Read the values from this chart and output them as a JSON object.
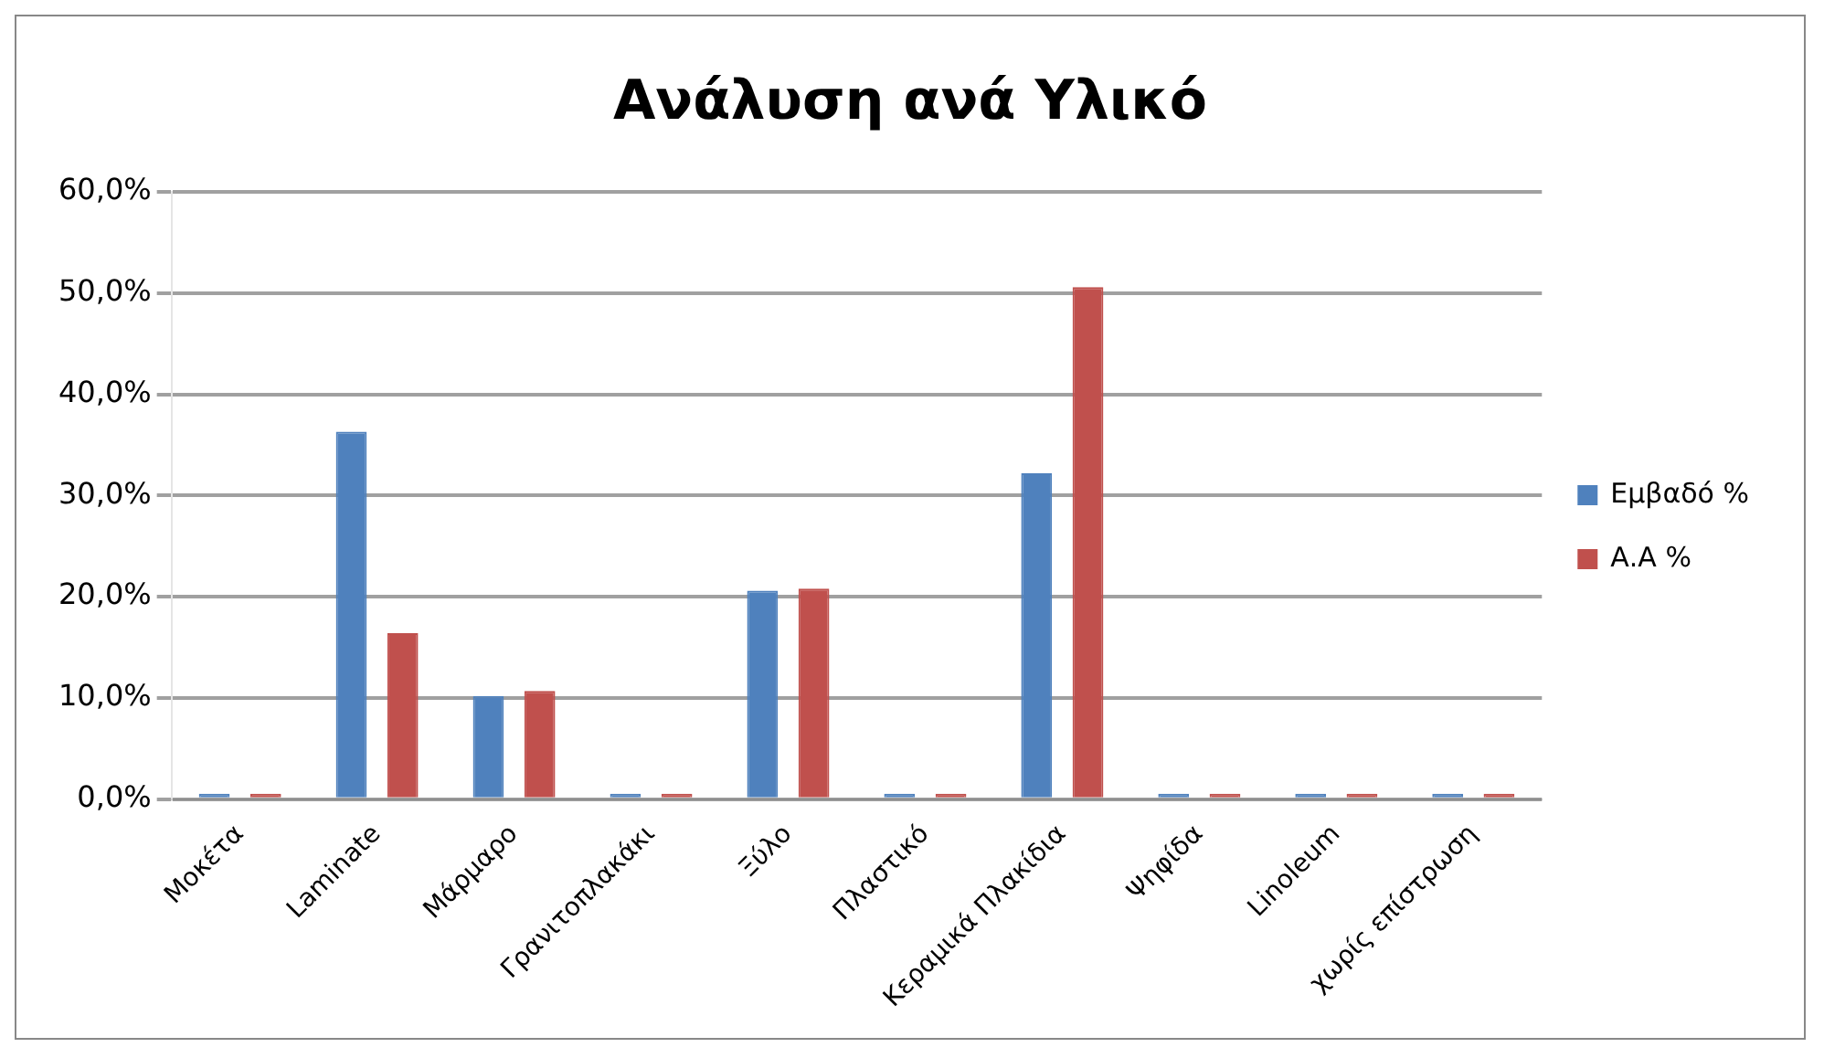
{
  "chart_data": {
    "type": "bar",
    "title": "Ανάλυση ανά Υλικό",
    "categories": [
      "Μοκέτα",
      "Laminate",
      "Μάρμαρο",
      "Γρανιτοπλακάκι",
      "Ξύλο",
      "Πλαστικό",
      "Κεραμικά Πλακίδια",
      "Ψηφίδα",
      "Linoleum",
      "χωρίς επίστρωση"
    ],
    "series": [
      {
        "name": "Εμβαδό %",
        "color": "#4f81bd",
        "values": [
          0,
          36.3,
          10.2,
          0,
          20.6,
          0,
          32.2,
          0,
          0,
          0
        ]
      },
      {
        "name": "Α.Α %",
        "color": "#c0504d",
        "values": [
          0,
          16.4,
          10.7,
          0,
          20.8,
          0,
          50.6,
          0,
          0,
          0
        ]
      }
    ],
    "ylim": [
      0,
      60
    ],
    "yticks": [
      {
        "value": 0,
        "label": "0,0%"
      },
      {
        "value": 10,
        "label": "10,0%"
      },
      {
        "value": 20,
        "label": "20,0%"
      },
      {
        "value": 30,
        "label": "30,0%"
      },
      {
        "value": 40,
        "label": "40,0%"
      },
      {
        "value": 50,
        "label": "50,0%"
      },
      {
        "value": 60,
        "label": "60,0%"
      }
    ],
    "grid": "y",
    "legend": "right"
  }
}
